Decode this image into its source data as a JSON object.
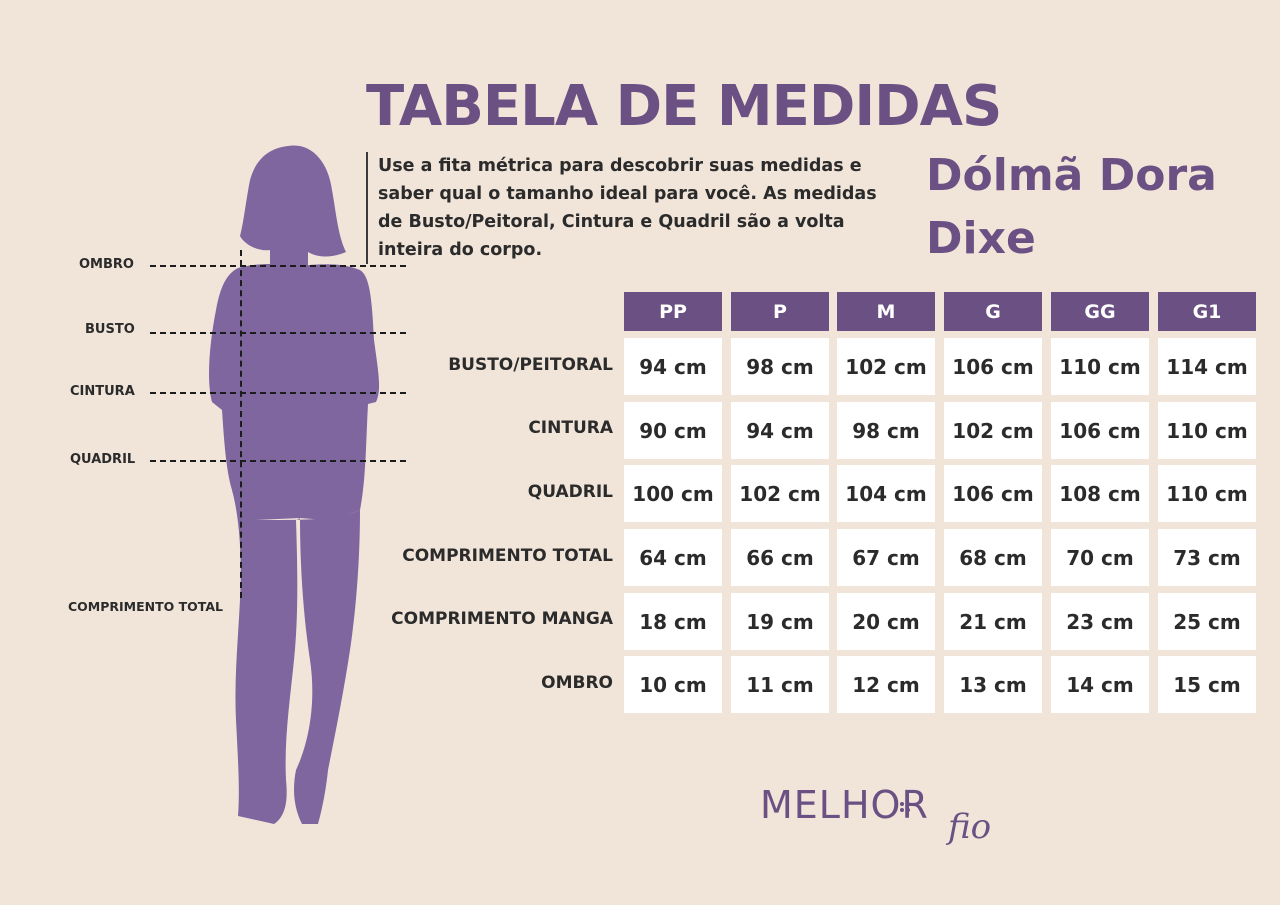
{
  "title": "TABELA DE MEDIDAS",
  "intro": "Use a fita métrica para descobrir suas medidas e saber qual o tamanho ideal para você. As medidas de Busto/Peitoral, Cintura e Quadril são a volta inteira do corpo.",
  "product": "Dólmã Dora Dixe",
  "colors": {
    "background": "#f1e5da",
    "accent": "#6a5083",
    "text": "#2b2b2b",
    "cell": "#ffffff"
  },
  "body_guide": {
    "labels": [
      "OMBRO",
      "BUSTO",
      "CINTURA",
      "QUADRIL",
      "COMPRIMENTO TOTAL"
    ]
  },
  "table": {
    "sizes": [
      "PP",
      "P",
      "M",
      "G",
      "GG",
      "G1"
    ],
    "rows": [
      {
        "label": "BUSTO/PEITORAL",
        "values": [
          "94 cm",
          "98 cm",
          "102 cm",
          "106 cm",
          "110 cm",
          "114 cm"
        ]
      },
      {
        "label": "CINTURA",
        "values": [
          "90 cm",
          "94 cm",
          "98 cm",
          "102 cm",
          "106 cm",
          "110 cm"
        ]
      },
      {
        "label": "QUADRIL",
        "values": [
          "100 cm",
          "102 cm",
          "104 cm",
          "106 cm",
          "108 cm",
          "110 cm"
        ]
      },
      {
        "label": "COMPRIMENTO TOTAL",
        "values": [
          "64 cm",
          "66 cm",
          "67 cm",
          "68 cm",
          "70 cm",
          "73 cm"
        ]
      },
      {
        "label": "COMPRIMENTO MANGA",
        "values": [
          "18 cm",
          "19 cm",
          "20 cm",
          "21 cm",
          "23 cm",
          "25 cm"
        ]
      },
      {
        "label": "OMBRO",
        "values": [
          "10 cm",
          "11 cm",
          "12 cm",
          "13 cm",
          "14 cm",
          "15 cm"
        ]
      }
    ]
  },
  "logo": {
    "main": "MELHOR",
    "script": "fio"
  }
}
